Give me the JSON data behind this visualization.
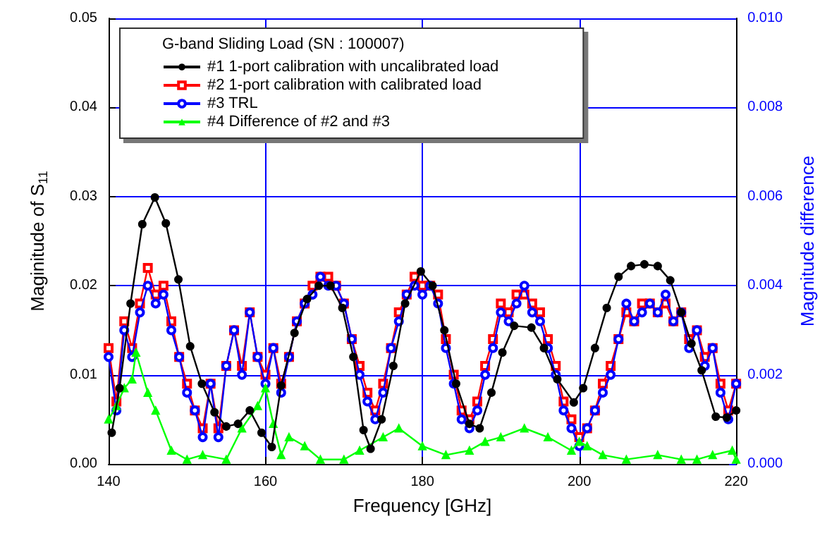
{
  "chart_data": {
    "type": "line",
    "xlabel": "Frequency [GHz]",
    "ylabel": "Maginitude of S$_{11}$",
    "y2label": "Magnitude difference",
    "legend_title": "G-band Sliding Load (SN : 100007)",
    "legend": "top left",
    "grid": true,
    "line_style": "solid",
    "xlim": [
      140,
      220
    ],
    "ylim": [
      0,
      0.05
    ],
    "y2lim": [
      0,
      0.01
    ],
    "xticks": [
      140,
      160,
      180,
      200,
      220
    ],
    "yticks": [
      {
        "value": 0,
        "label": "0.00"
      },
      {
        "value": 0.01,
        "label": "0.01"
      },
      {
        "value": 0.02,
        "label": "0.02"
      },
      {
        "value": 0.03,
        "label": "0.03"
      },
      {
        "value": 0.04,
        "label": "0.04"
      },
      {
        "value": 0.05,
        "label": "0.05"
      }
    ],
    "y2ticks": [
      {
        "value": 0,
        "label": "0.000"
      },
      {
        "value": 0.002,
        "label": "0.002"
      },
      {
        "value": 0.004,
        "label": "0.004"
      },
      {
        "value": 0.006,
        "label": "0.006"
      },
      {
        "value": 0.008,
        "label": "0.008"
      },
      {
        "value": 0.01,
        "label": "0.010"
      }
    ],
    "series": [
      {
        "name": "#1 1-port calibration with uncalibrated load",
        "color": "#000000",
        "marker": "circle",
        "x": [
          140.4,
          141.4,
          142.8,
          144.3,
          145.9,
          147.3,
          148.9,
          150.4,
          151.9,
          153.5,
          155,
          156.5,
          158,
          159.5,
          160.8,
          162,
          163.7,
          165.3,
          166.8,
          168.3,
          169.8,
          171.2,
          172.5,
          173.4,
          174.8,
          176.3,
          177.8,
          179.8,
          181.3,
          182.8,
          184.3,
          186,
          187.3,
          188.8,
          190.2,
          191.7,
          193.9,
          195.5,
          197.2,
          199.3,
          200.5,
          202,
          203.5,
          205,
          206.6,
          208.3,
          210,
          211.6,
          213,
          214.3,
          215.6,
          217.4,
          218.8,
          220
        ],
        "values": [
          0.0035,
          0.0085,
          0.018,
          0.0269,
          0.0299,
          0.027,
          0.0207,
          0.0132,
          0.009,
          0.0058,
          0.0042,
          0.0045,
          0.006,
          0.0035,
          0.0019,
          0.0088,
          0.0147,
          0.0185,
          0.02,
          0.02,
          0.0175,
          0.012,
          0.0038,
          0.0017,
          0.005,
          0.011,
          0.018,
          0.0216,
          0.02,
          0.015,
          0.009,
          0.0045,
          0.004,
          0.008,
          0.0125,
          0.0155,
          0.0153,
          0.013,
          0.0095,
          0.0069,
          0.0085,
          0.013,
          0.0175,
          0.021,
          0.0222,
          0.0224,
          0.0222,
          0.0206,
          0.017,
          0.0135,
          0.0105,
          0.0053,
          0.0052,
          0.006
        ]
      },
      {
        "name": "#2 1-port calibration with calibrated load",
        "color": "#ff0000",
        "marker": "square",
        "x": [
          140,
          141,
          142,
          143,
          144,
          145,
          146,
          147,
          148,
          149,
          150,
          151,
          152,
          153,
          154,
          155,
          156,
          157,
          158,
          159,
          160,
          161,
          162,
          163,
          164,
          165,
          166,
          167,
          168,
          169,
          170,
          171,
          172,
          173,
          174,
          175,
          176,
          177,
          178,
          179,
          180,
          181,
          182,
          183,
          184,
          185,
          186,
          187,
          188,
          189,
          190,
          191,
          192,
          193,
          194,
          195,
          196,
          197,
          198,
          199,
          200,
          201,
          202,
          203,
          204,
          205,
          206,
          207,
          208,
          209,
          210,
          211,
          212,
          213,
          214,
          215,
          216,
          217,
          218,
          219,
          220
        ],
        "values": [
          0.013,
          0.007,
          0.016,
          0.013,
          0.018,
          0.022,
          0.019,
          0.02,
          0.016,
          0.012,
          0.009,
          0.006,
          0.004,
          0.009,
          0.004,
          0.011,
          0.015,
          0.011,
          0.017,
          0.012,
          0.01,
          0.013,
          0.009,
          0.012,
          0.016,
          0.018,
          0.02,
          0.021,
          0.021,
          0.02,
          0.018,
          0.014,
          0.011,
          0.008,
          0.006,
          0.009,
          0.013,
          0.017,
          0.019,
          0.021,
          0.02,
          0.02,
          0.019,
          0.014,
          0.01,
          0.006,
          0.005,
          0.007,
          0.011,
          0.014,
          0.018,
          0.017,
          0.019,
          0.019,
          0.018,
          0.017,
          0.014,
          0.011,
          0.007,
          0.005,
          0.003,
          0.004,
          0.006,
          0.009,
          0.011,
          0.014,
          0.017,
          0.016,
          0.018,
          0.018,
          0.017,
          0.018,
          0.016,
          0.017,
          0.014,
          0.015,
          0.012,
          0.013,
          0.009,
          0.006,
          0.009
        ]
      },
      {
        "name": "#3 TRL",
        "color": "#0000ff",
        "marker": "circle",
        "x": [
          140,
          141,
          142,
          143,
          144,
          145,
          146,
          147,
          148,
          149,
          150,
          151,
          152,
          153,
          154,
          155,
          156,
          157,
          158,
          159,
          160,
          161,
          162,
          163,
          164,
          165,
          166,
          167,
          168,
          169,
          170,
          171,
          172,
          173,
          174,
          175,
          176,
          177,
          178,
          179,
          180,
          181,
          182,
          183,
          184,
          185,
          186,
          187,
          188,
          189,
          190,
          191,
          192,
          193,
          194,
          195,
          196,
          197,
          198,
          199,
          200,
          201,
          202,
          203,
          204,
          205,
          206,
          207,
          208,
          209,
          210,
          211,
          212,
          213,
          214,
          215,
          216,
          217,
          218,
          219,
          220
        ],
        "values": [
          0.012,
          0.006,
          0.015,
          0.012,
          0.017,
          0.02,
          0.018,
          0.019,
          0.015,
          0.012,
          0.008,
          0.006,
          0.003,
          0.009,
          0.003,
          0.011,
          0.015,
          0.01,
          0.017,
          0.012,
          0.009,
          0.013,
          0.008,
          0.012,
          0.016,
          0.018,
          0.019,
          0.021,
          0.02,
          0.02,
          0.018,
          0.014,
          0.01,
          0.007,
          0.005,
          0.008,
          0.013,
          0.016,
          0.019,
          0.02,
          0.019,
          0.02,
          0.018,
          0.013,
          0.009,
          0.005,
          0.004,
          0.006,
          0.01,
          0.013,
          0.017,
          0.016,
          0.018,
          0.02,
          0.017,
          0.016,
          0.013,
          0.01,
          0.006,
          0.004,
          0.002,
          0.004,
          0.006,
          0.008,
          0.01,
          0.014,
          0.018,
          0.016,
          0.017,
          0.018,
          0.017,
          0.019,
          0.016,
          0.017,
          0.013,
          0.015,
          0.011,
          0.013,
          0.008,
          0.005,
          0.009
        ]
      },
      {
        "name": "#4 Difference of #2 and #3",
        "color": "#00ff00",
        "marker": "triangle",
        "axis": "y2",
        "x": [
          140,
          141,
          142,
          143,
          143.5,
          145,
          146,
          148,
          150,
          152,
          155,
          157,
          159,
          160,
          161,
          162,
          163,
          165,
          167,
          170,
          172,
          175,
          177,
          180,
          183,
          186,
          188,
          190,
          193,
          196,
          199,
          200,
          201,
          203,
          206,
          210,
          213,
          215,
          217,
          219.5,
          220
        ],
        "values": [
          0.001,
          0.0013,
          0.0017,
          0.0019,
          0.0025,
          0.0016,
          0.0012,
          0.0003,
          0.0001,
          0.0002,
          0.0001,
          0.0008,
          0.0013,
          0.0017,
          0.0009,
          0.0002,
          0.0006,
          0.0004,
          0.0001,
          0.0001,
          0.0003,
          0.0006,
          0.0008,
          0.0004,
          0.0002,
          0.0003,
          0.0005,
          0.0006,
          0.0008,
          0.0006,
          0.0003,
          0.0005,
          0.0004,
          0.0002,
          0.0001,
          0.0002,
          0.0001,
          0.0001,
          0.0002,
          0.0003,
          0.0001
        ]
      }
    ]
  }
}
